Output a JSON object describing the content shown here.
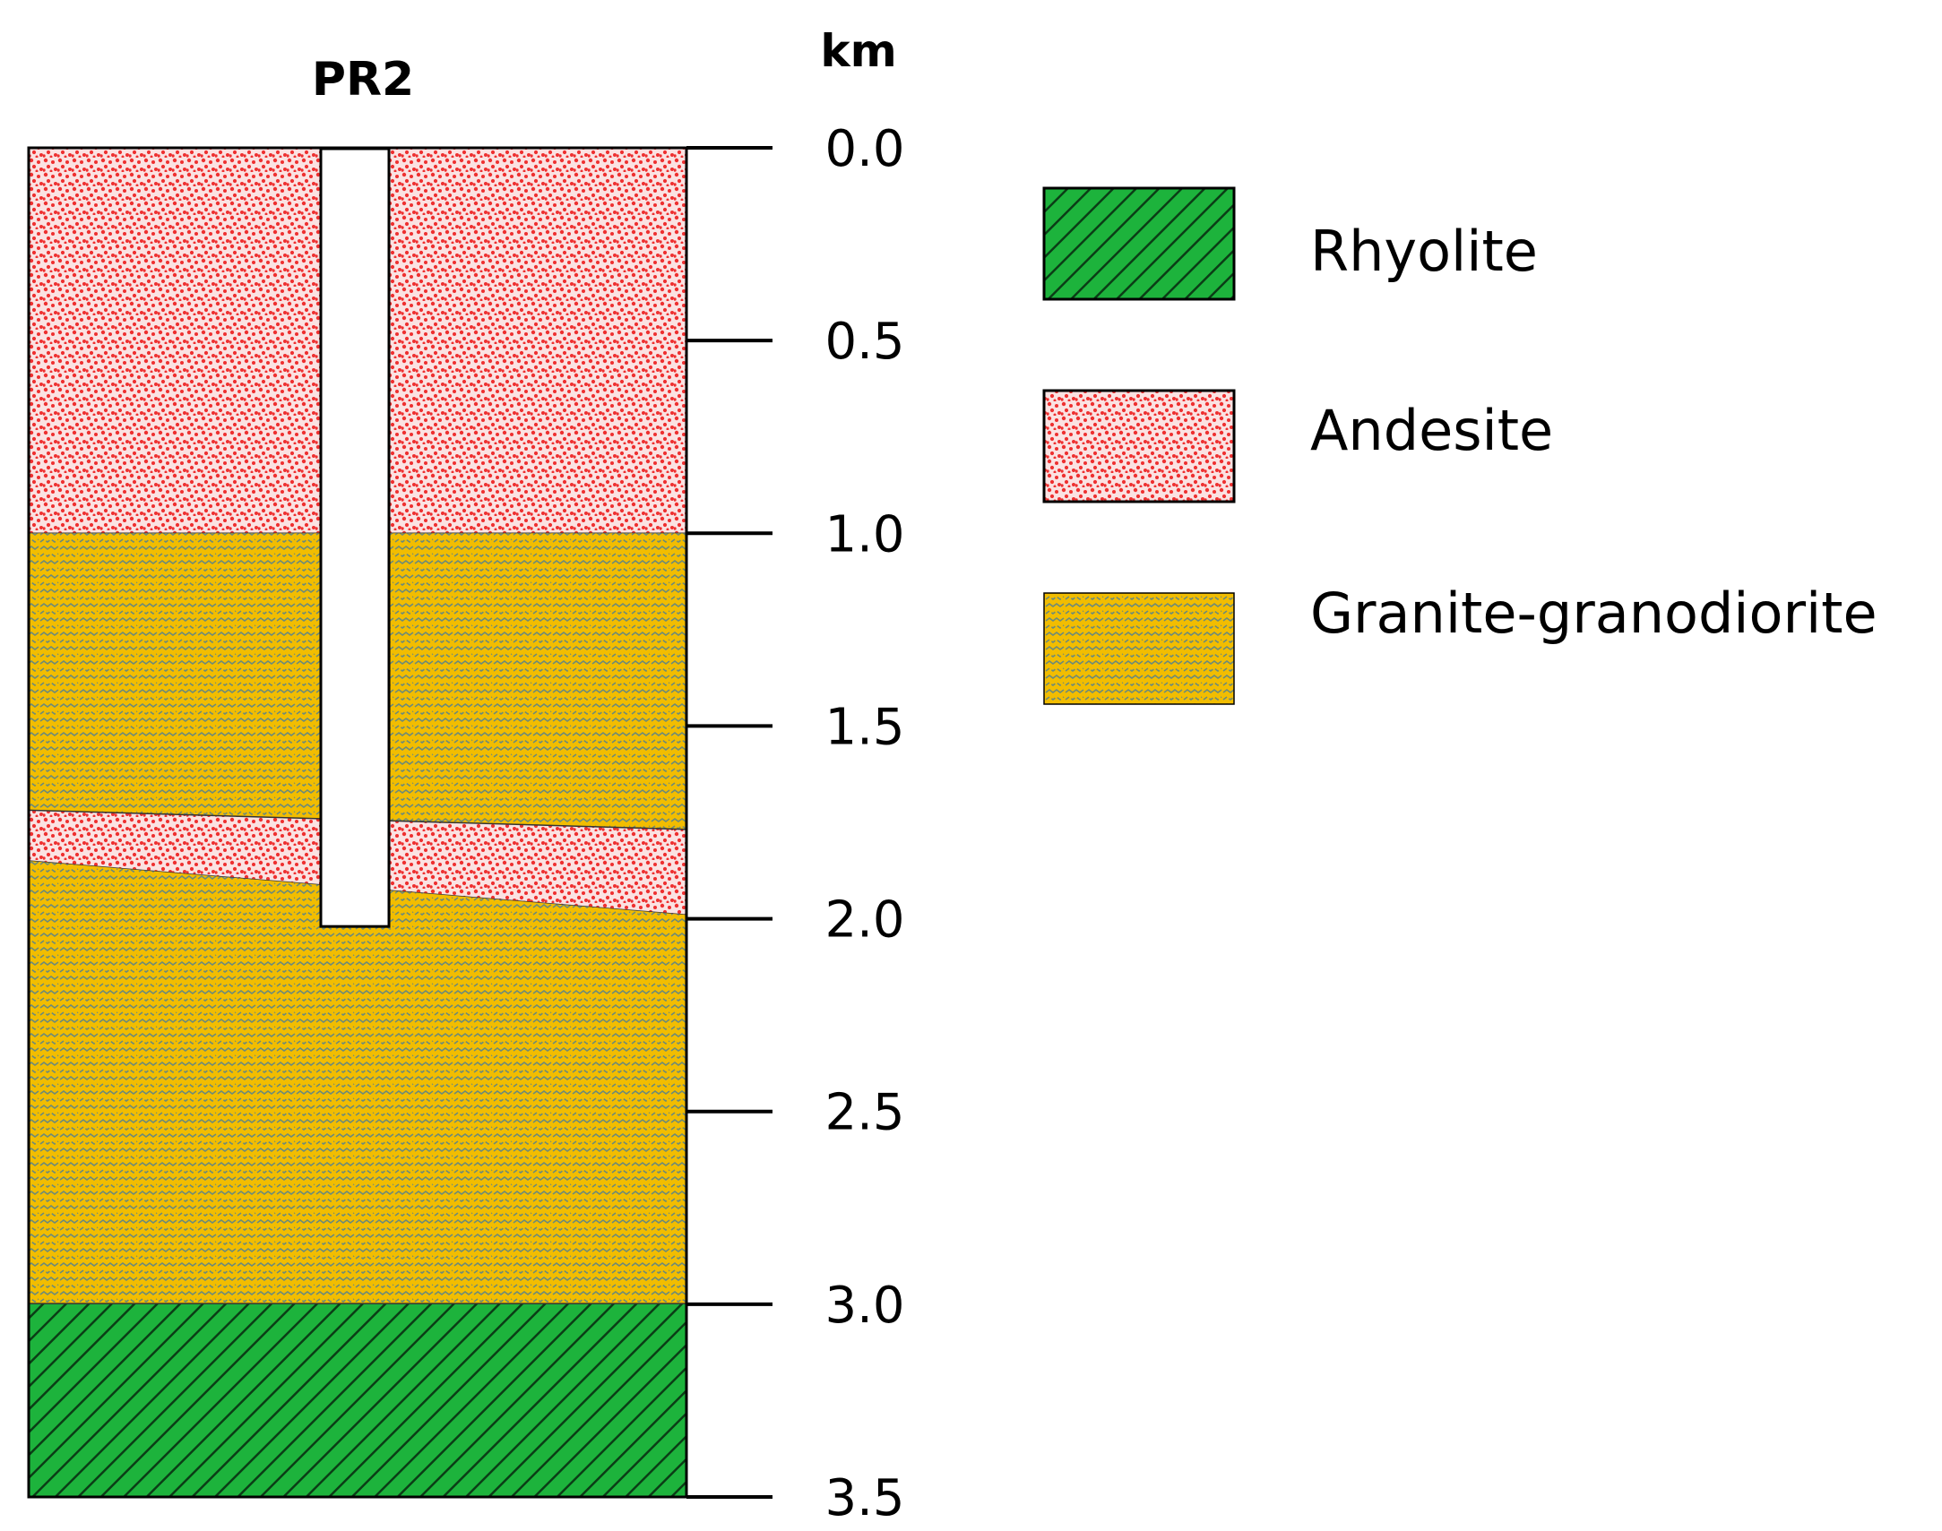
{
  "figure": {
    "well_name": "PR2",
    "depth_unit": "km",
    "depth_range": [
      0.0,
      3.5
    ],
    "depth_ticks": [
      "0.0",
      "0.5",
      "1.0",
      "1.5",
      "2.0",
      "2.5",
      "3.0",
      "3.5"
    ],
    "borehole_bottom_depth": 2.02,
    "layers": [
      {
        "id": "andesite-upper",
        "rock": "Andesite",
        "top_left": 0.0,
        "top_right": 0.0,
        "bottom_left": 1.0,
        "bottom_right": 1.0
      },
      {
        "id": "granite-upper",
        "rock": "Granite-granodiorite",
        "top_left": 1.0,
        "top_right": 1.0,
        "bottom_left": 1.72,
        "bottom_right": 1.77
      },
      {
        "id": "andesite-lens",
        "rock": "Andesite",
        "top_left": 1.72,
        "top_right": 1.77,
        "bottom_left": 1.85,
        "bottom_right": 1.99
      },
      {
        "id": "granite-lower",
        "rock": "Granite-granodiorite",
        "top_left": 1.85,
        "top_right": 1.99,
        "bottom_left": 3.0,
        "bottom_right": 3.0
      },
      {
        "id": "rhyolite",
        "rock": "Rhyolite",
        "top_left": 3.0,
        "top_right": 3.0,
        "bottom_left": 3.5,
        "bottom_right": 3.5
      }
    ]
  },
  "legend": {
    "items": [
      {
        "label": "Rhyolite",
        "fill": "#1db33c",
        "pattern": "diagonal-hatch"
      },
      {
        "label": "Andesite",
        "fill": "#ff8888",
        "pattern": "red-dots"
      },
      {
        "label": "Granite-granodiorite",
        "fill": "#f2bd00",
        "pattern": "wavy-dashes"
      }
    ]
  },
  "colors": {
    "rhyolite_fill": "#1db33c",
    "rhyolite_hatch": "#0b3d16",
    "andesite_fill": "#fbe2e2",
    "andesite_dot": "#ee3030",
    "granite_fill": "#f2bd00",
    "granite_mark": "#6b8a7a",
    "borehole_fill": "#ffffff",
    "outline": "#000000"
  }
}
